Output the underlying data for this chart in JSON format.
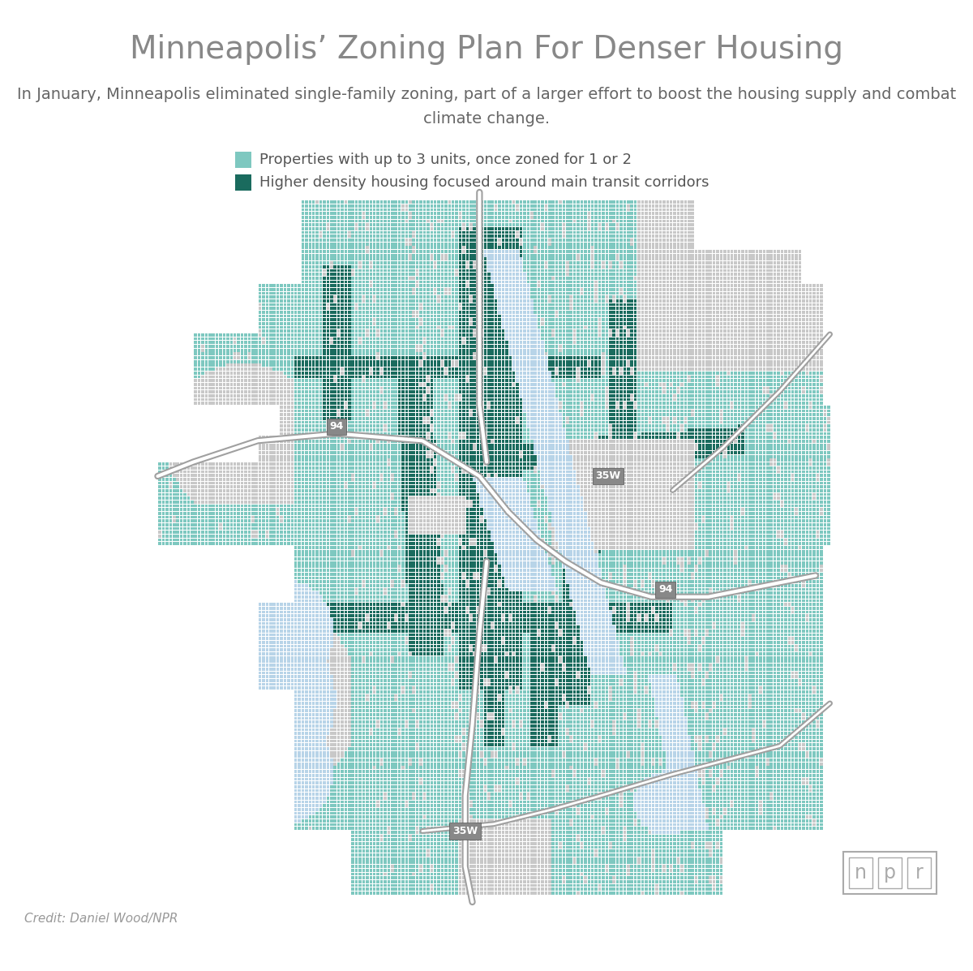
{
  "title": "Minneapolis’ Zoning Plan For Denser Housing",
  "subtitle": "In January, Minneapolis eliminated single-family zoning, part of a larger effort to boost the housing supply and combat\nclimate change.",
  "legend": [
    {
      "label": "Properties with up to 3 units, once zoned for 1 or 2",
      "color": "#7ec8c0"
    },
    {
      "label": "Higher density housing focused around main transit corridors",
      "color": "#1a6b5e"
    }
  ],
  "credit": "Credit: Daniel Wood/NPR",
  "title_color": "#888888",
  "subtitle_color": "#666666",
  "legend_text_color": "#555555",
  "background_color": "#ffffff",
  "title_fontsize": 28,
  "subtitle_fontsize": 14,
  "legend_fontsize": 13,
  "credit_fontsize": 11,
  "light_zone": "#7ec8c0",
  "dark_zone": "#1a6b5e",
  "water": "#b8d4e8",
  "gray_area": "#c8c8c8",
  "white_street": "#ffffff",
  "highway_gray": "#a0a0a0",
  "highway_label_bg": "#888888",
  "highway_label_text": "#ffffff",
  "npr_border": "#aaaaaa",
  "npr_text": "#aaaaaa"
}
